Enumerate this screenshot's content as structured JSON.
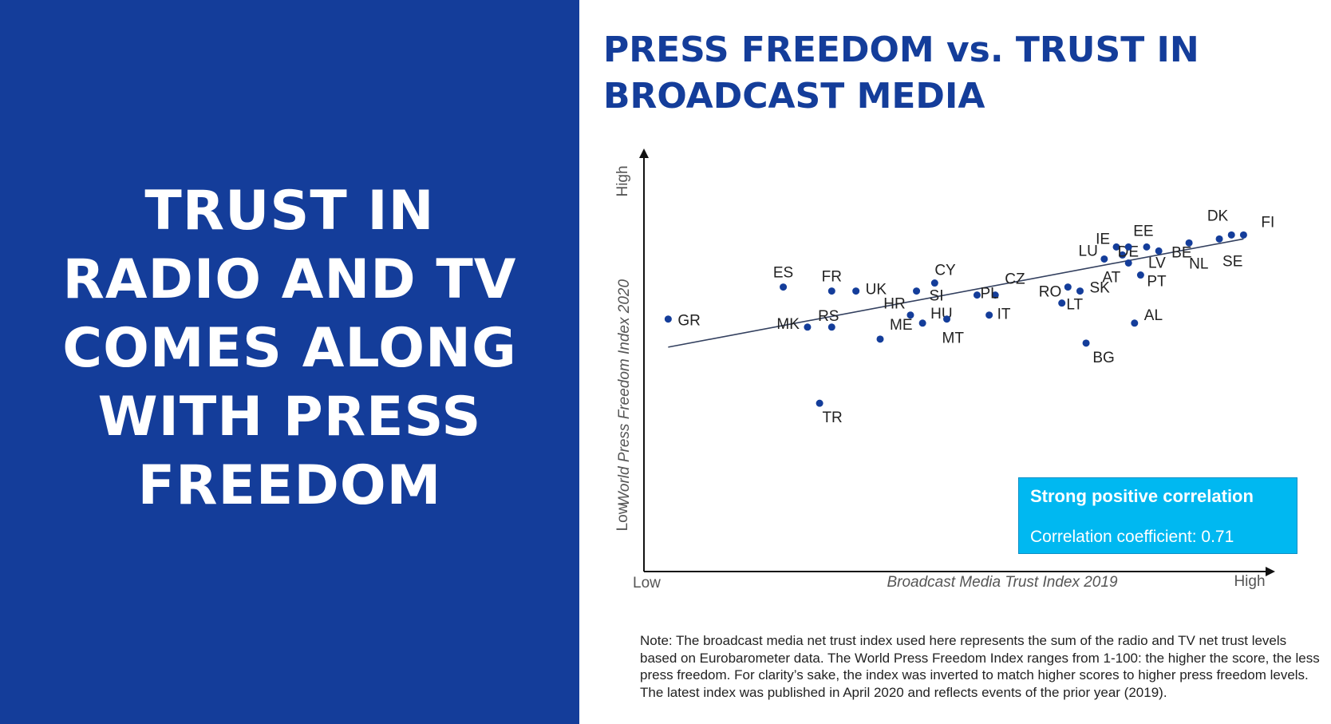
{
  "headline": {
    "lines": [
      "TRUST IN",
      "RADIO AND TV",
      "COMES ALONG",
      "WITH PRESS",
      "FREEDOM"
    ]
  },
  "title": {
    "lines": [
      "PRESS FREEDOM vs. TRUST IN",
      "BROADCAST MEDIA"
    ]
  },
  "colors": {
    "panel": "#143d9a",
    "title": "#143d9a",
    "point": "#143d9a",
    "box": "#00b8f1"
  },
  "chart_data": {
    "type": "scatter",
    "xlabel": "Broadcast Media Trust Index 2019",
    "ylabel": "World Press Freedom Index 2020",
    "x_tick_labels": [
      "Low",
      "High"
    ],
    "y_tick_labels": [
      "Low",
      "High"
    ],
    "xlim": [
      0,
      100
    ],
    "ylim": [
      0,
      100
    ],
    "grid": false,
    "legend": "none",
    "points": [
      {
        "label": "GR",
        "x": 4,
        "y": 63
      },
      {
        "label": "ES",
        "x": 23,
        "y": 71
      },
      {
        "label": "FR",
        "x": 31,
        "y": 70
      },
      {
        "label": "UK",
        "x": 35,
        "y": 70
      },
      {
        "label": "MK",
        "x": 27,
        "y": 61
      },
      {
        "label": "RS",
        "x": 31,
        "y": 61
      },
      {
        "label": "TR",
        "x": 29,
        "y": 42
      },
      {
        "label": "ME",
        "x": 39,
        "y": 58
      },
      {
        "label": "HR",
        "x": 44,
        "y": 64
      },
      {
        "label": "SI",
        "x": 45,
        "y": 70
      },
      {
        "label": "CY",
        "x": 48,
        "y": 72
      },
      {
        "label": "HU",
        "x": 46,
        "y": 62
      },
      {
        "label": "MT",
        "x": 50,
        "y": 63
      },
      {
        "label": "CZ",
        "x": 58,
        "y": 69
      },
      {
        "label": "PL",
        "x": 55,
        "y": 69
      },
      {
        "label": "IT",
        "x": 57,
        "y": 64
      },
      {
        "label": "RO",
        "x": 70,
        "y": 71
      },
      {
        "label": "SK",
        "x": 72,
        "y": 70
      },
      {
        "label": "LT",
        "x": 69,
        "y": 67
      },
      {
        "label": "BG",
        "x": 73,
        "y": 57
      },
      {
        "label": "AL",
        "x": 81,
        "y": 62
      },
      {
        "label": "LU",
        "x": 76,
        "y": 78
      },
      {
        "label": "IE",
        "x": 78,
        "y": 81
      },
      {
        "label": "DE",
        "x": 79,
        "y": 79
      },
      {
        "label": "EE",
        "x": 80,
        "y": 81
      },
      {
        "label": "AT",
        "x": 80,
        "y": 77
      },
      {
        "label": "LV",
        "x": 83,
        "y": 81
      },
      {
        "label": "PT",
        "x": 82,
        "y": 74
      },
      {
        "label": "BE",
        "x": 85,
        "y": 80
      },
      {
        "label": "NL",
        "x": 90,
        "y": 82
      },
      {
        "label": "SE",
        "x": 95,
        "y": 83
      },
      {
        "label": "DK",
        "x": 97,
        "y": 84
      },
      {
        "label": "FI",
        "x": 99,
        "y": 84
      }
    ],
    "trendline": {
      "x": [
        4,
        99
      ],
      "y": [
        56,
        83
      ]
    }
  },
  "corr_box": {
    "title": "Strong positive correlation",
    "subtitle": "Correlation coefficient: 0.71"
  },
  "note": "Note: The broadcast media net trust index used here represents the sum of the radio and TV net trust levels based on Eurobarometer data. The World Press Freedom Index ranges from 1-100: the higher the score, the less press freedom. For clarity’s sake, the index was inverted to match higher scores to higher press freedom levels. The latest index was published in April 2020 and reflects events of the prior year (2019)."
}
